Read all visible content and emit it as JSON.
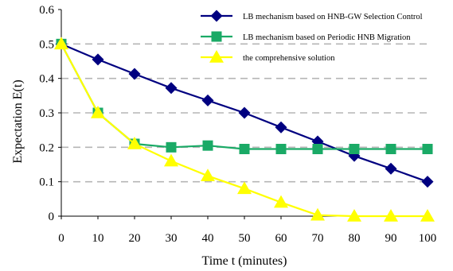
{
  "chart_data": {
    "type": "line",
    "title": "",
    "xlabel": "Time t (minutes)",
    "ylabel": "Expectation E(t)",
    "x": [
      0,
      10,
      20,
      30,
      40,
      50,
      60,
      70,
      80,
      90,
      100
    ],
    "xlim": [
      0,
      100
    ],
    "ylim": [
      0,
      0.6
    ],
    "x_ticks": [
      "0",
      "10",
      "20",
      "30",
      "40",
      "50",
      "60",
      "70",
      "80",
      "90",
      "100"
    ],
    "y_ticks": [
      "0",
      "0.1",
      "0.2",
      "0.3",
      "0.4",
      "0.5",
      "0.6"
    ],
    "y_tick_values": [
      0,
      0.1,
      0.2,
      0.3,
      0.4,
      0.5,
      0.6
    ],
    "grid": "horizontal dashed",
    "legend_position": "top-right",
    "series": [
      {
        "name": "LB mechanism based on HNB-GW Selection Control",
        "color": "#000080",
        "marker": "diamond",
        "values": [
          0.5,
          0.455,
          0.413,
          0.372,
          0.336,
          0.3,
          0.258,
          0.217,
          0.175,
          0.138,
          0.1
        ]
      },
      {
        "name": "LB mechanism based on Periodic HNB Migration",
        "color": "#1aaa66",
        "marker": "square",
        "values": [
          0.5,
          0.3,
          0.21,
          0.2,
          0.205,
          0.195,
          0.195,
          0.195,
          0.195,
          0.195,
          0.195
        ]
      },
      {
        "name": "the comprehensive solution",
        "color": "#ffff00",
        "marker": "triangle",
        "values": [
          0.5,
          0.3,
          0.21,
          0.16,
          0.117,
          0.08,
          0.04,
          0.003,
          0.0,
          0.0,
          0.0
        ]
      }
    ]
  }
}
